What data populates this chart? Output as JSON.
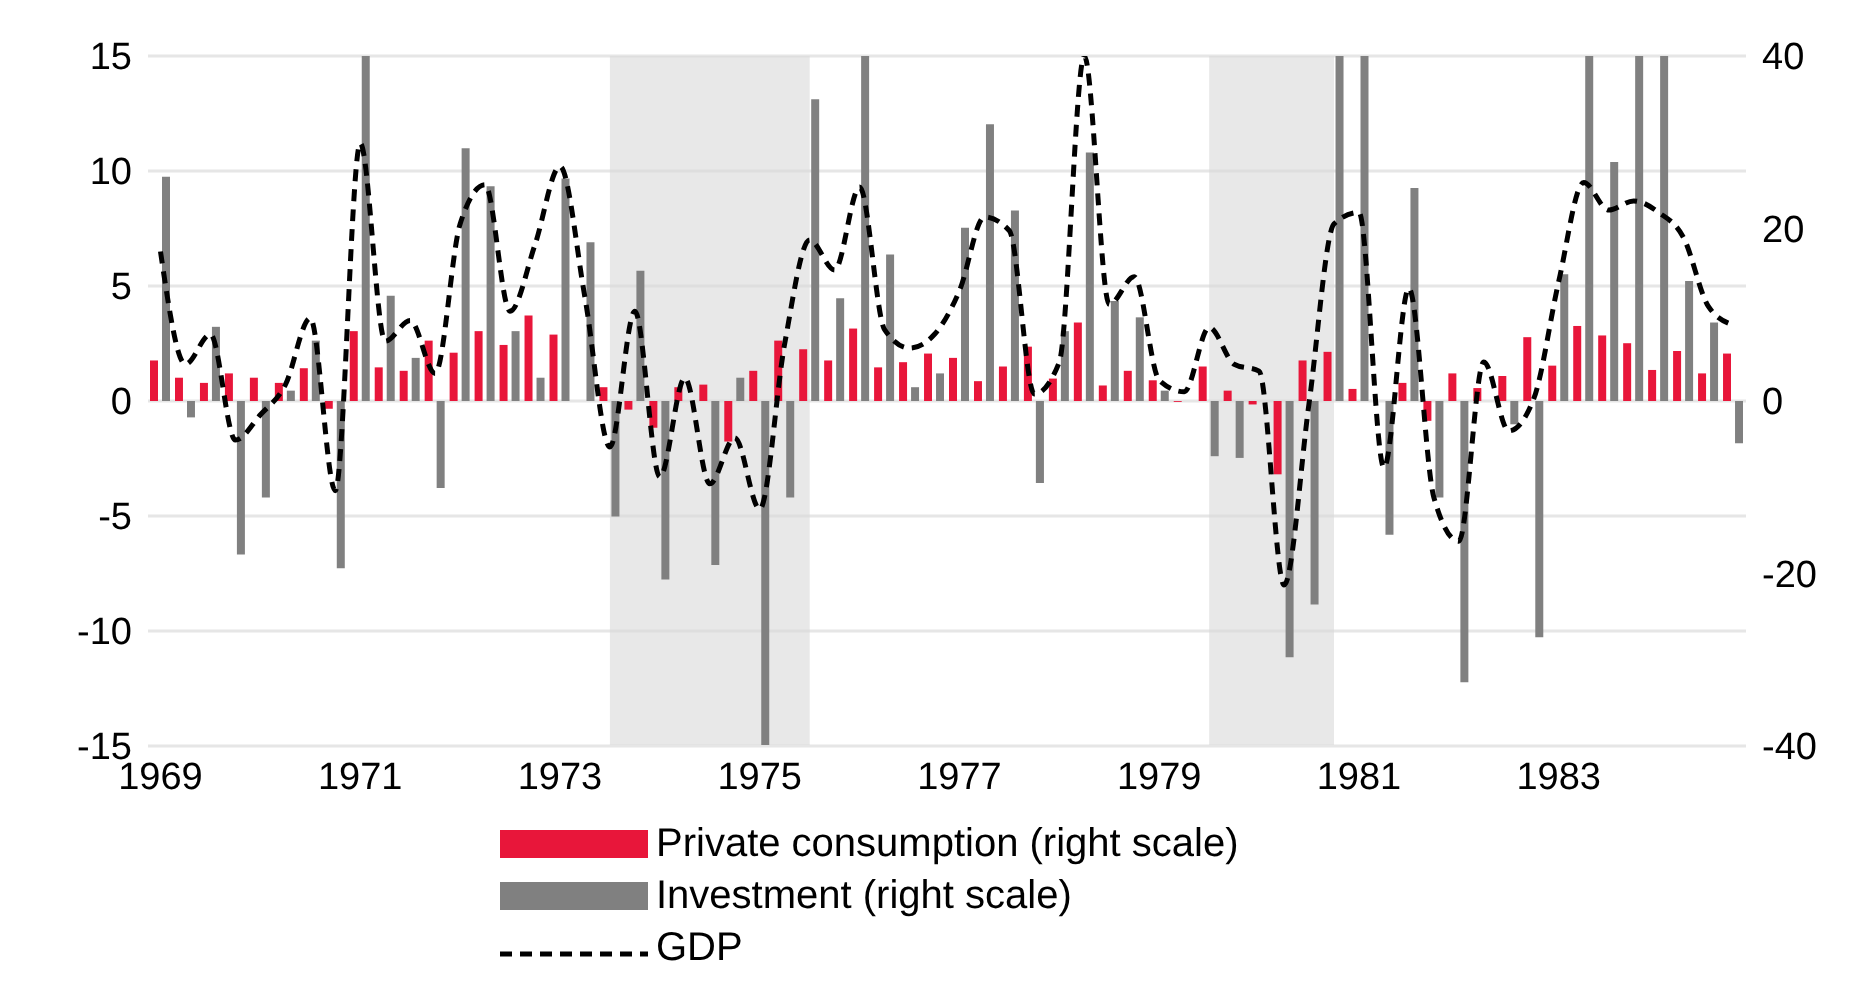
{
  "chart_data": {
    "type": "bar",
    "x": [
      1969,
      1969.25,
      1969.5,
      1969.75,
      1970,
      1970.25,
      1970.5,
      1970.75,
      1971,
      1971.25,
      1971.5,
      1971.75,
      1972,
      1972.25,
      1972.5,
      1972.75,
      1973,
      1973.25,
      1973.5,
      1973.75,
      1974,
      1974.25,
      1974.5,
      1974.75,
      1975,
      1975.25,
      1975.5,
      1975.75,
      1976,
      1976.25,
      1976.5,
      1976.75,
      1977,
      1977.25,
      1977.5,
      1977.75,
      1978,
      1978.25,
      1978.5,
      1978.75,
      1979,
      1979.25,
      1979.5,
      1979.75,
      1980,
      1980.25,
      1980.5,
      1980.75,
      1981,
      1981.25,
      1981.5,
      1981.75,
      1982,
      1982.25,
      1982.5,
      1982.75,
      1983,
      1983.25,
      1983.5,
      1983.75,
      1984,
      1984.25,
      1984.5,
      1984.75
    ],
    "series": [
      {
        "name": "Private consumption (right scale)",
        "axis": "y2",
        "color": "#e8163a",
        "values": [
          4.7,
          2.7,
          2.1,
          3.2,
          2.7,
          2.1,
          3.8,
          -0.9,
          8.1,
          3.9,
          3.5,
          7,
          5.6,
          8.1,
          6.5,
          9.9,
          7.7,
          0,
          1.6,
          -1.0,
          -3.1,
          1.6,
          1.9,
          -4.7,
          3.5,
          7.0,
          6.0,
          4.7,
          8.4,
          3.9,
          4.5,
          5.5,
          5.0,
          2.3,
          4.0,
          6.3,
          2.6,
          9.1,
          1.8,
          3.5,
          2.4,
          -0.1,
          4.0,
          1.2,
          -0.4,
          -8.5,
          4.7,
          5.7,
          1.4,
          0,
          2.1,
          -2.3,
          3.2,
          1.5,
          2.9,
          7.4,
          4.1,
          8.7,
          7.6,
          6.7,
          3.6,
          5.8,
          3.2,
          5.5
        ]
      },
      {
        "name": "Investment (right scale)",
        "axis": "y2",
        "color": "#808080",
        "values": [
          26,
          -1.9,
          8.6,
          -17.8,
          -11.2,
          1.2,
          7,
          -19.4,
          40,
          12.2,
          5,
          -10.1,
          29.3,
          24.9,
          8.1,
          2.7,
          25.8,
          18.4,
          -13.4,
          15.1,
          -20.7,
          0,
          -19.0,
          2.7,
          -40,
          -11.2,
          35,
          11.9,
          40,
          17,
          1.6,
          3.2,
          20.1,
          32.1,
          22.1,
          -9.5,
          8.1,
          28.8,
          11.6,
          9.7,
          1.2,
          0,
          -6.4,
          -6.6,
          0,
          -29.7,
          -23.6,
          40,
          40,
          -15.5,
          24.7,
          -11.2,
          -32.6,
          0,
          -2.7,
          -27.4,
          14.7,
          40,
          27.7,
          40,
          40,
          13.9,
          9.1,
          -4.9
        ]
      },
      {
        "name": "GDP",
        "type": "line",
        "axis": "y",
        "color": "#000000",
        "line_style": "dashed",
        "values": [
          6.5,
          1.6,
          2.9,
          -1.7,
          -0.6,
          0.7,
          3.6,
          -3.9,
          11.2,
          2.6,
          3.5,
          1.2,
          7.7,
          9.4,
          3.9,
          6.8,
          10.2,
          4.5,
          -2.0,
          3.9,
          -3.3,
          1.0,
          -3.6,
          -1.6,
          -4.7,
          2.5,
          7.0,
          5.7,
          9.3,
          3.1,
          2.3,
          2.9,
          4.8,
          8.0,
          7.4,
          0.3,
          1.7,
          15.0,
          4.2,
          5.4,
          0.9,
          0.4,
          3.2,
          1.6,
          1.3,
          -8.0,
          -0.1,
          7.7,
          8.2,
          -2.9,
          4.9,
          -4.2,
          -6.1,
          1.7,
          -1.3,
          0.1,
          5.2,
          9.5,
          8.3,
          8.7,
          8.2,
          7.1,
          4.1,
          3.3
        ]
      }
    ],
    "xlim": [
      1968.875,
      1984.875
    ],
    "xticks": [
      1969,
      1971,
      1973,
      1975,
      1977,
      1979,
      1981,
      1983
    ],
    "ylim": [
      -15,
      15
    ],
    "yticks": [
      -15,
      -10,
      -5,
      0,
      5,
      10,
      15
    ],
    "y2lim": [
      -40,
      40
    ],
    "y2ticks": [
      -40,
      -20,
      0,
      20,
      40
    ],
    "bands": [
      {
        "axis": "x",
        "from": 1973.5,
        "to": 1975.5,
        "color": "#d9d9d9"
      },
      {
        "axis": "x",
        "from": 1979.5,
        "to": 1980.75,
        "color": "#d9d9d9"
      }
    ],
    "grid": "y",
    "legend": "bottom",
    "marker": "none"
  }
}
